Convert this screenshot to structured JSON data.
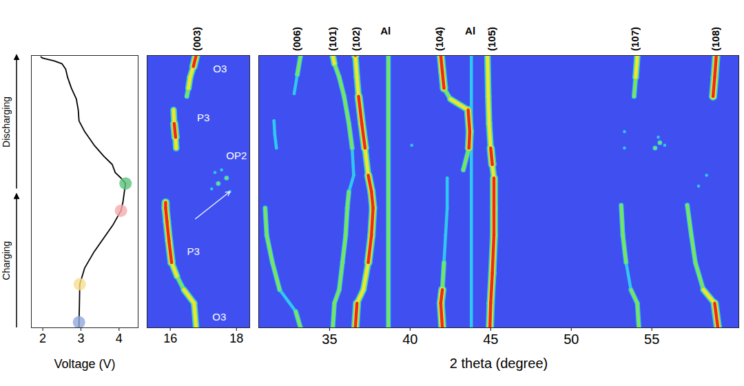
{
  "chart_data": [
    {
      "type": "line",
      "xlabel": "Voltage (V)",
      "xlim": [
        1.7,
        4.5
      ],
      "xticks": [
        2,
        3,
        4
      ],
      "ylim": [
        0,
        100
      ],
      "tick_labels": "x",
      "color": "#000000",
      "x": [
        2.95,
        2.95,
        2.96,
        2.97,
        3.1,
        3.35,
        3.6,
        3.85,
        4.05,
        4.1,
        4.13,
        4.17,
        4.05,
        3.9,
        3.82,
        3.6,
        3.35,
        3.1,
        2.95,
        2.93,
        2.88,
        2.75,
        2.65,
        2.6,
        2.5,
        2.3,
        2.0,
        1.95
      ],
      "y": [
        0,
        2,
        8,
        16,
        22,
        28,
        33,
        38,
        43,
        46,
        49,
        53,
        55,
        57,
        60,
        63,
        67,
        72,
        76,
        80,
        84,
        88,
        92,
        95,
        97,
        98,
        99,
        99.5
      ],
      "markers": {
        "x": [
          2.95,
          2.97,
          4.05,
          4.17
        ],
        "y": [
          2,
          16,
          43,
          53
        ],
        "colors": [
          "#8fa8dc",
          "#f7df8c",
          "#f6aaaa",
          "#5dc27c"
        ]
      },
      "phase_arrows": [
        {
          "text": "Charging",
          "y_start": 0,
          "y_end": 49
        },
        {
          "text": "Discharging",
          "y_start": 51,
          "y_end": 100
        }
      ]
    },
    {
      "type": "heatmap",
      "xlim": [
        15.3,
        18.4
      ],
      "xticks": [
        16,
        18
      ],
      "ylim": [
        0,
        100
      ],
      "tick_labels": "x",
      "color_scale": {
        "levels": [
          1,
          2,
          3,
          4
        ],
        "colors": [
          "#2fc8f0",
          "#7de35a",
          "#f0e532",
          "#ee2a1f"
        ]
      },
      "peak_labels": [
        {
          "text": "(003)",
          "x": 16.82
        }
      ],
      "annotations": [
        {
          "text": "O3",
          "x": 17.48,
          "y": 4
        },
        {
          "text": "P3",
          "x": 16.7,
          "y": 28
        },
        {
          "text": "OP2",
          "x": 18.0,
          "y": 63
        },
        {
          "text": "P3",
          "x": 17.0,
          "y": 77
        },
        {
          "text": "O3",
          "x": 17.5,
          "y": 95
        }
      ],
      "arrow": {
        "x1": 16.76,
        "y1": 40,
        "x2": 17.8,
        "y2": 50
      },
      "traces": [
        {
          "x": [
            16.78,
            16.72,
            16.41,
            16.2,
            16.04,
            15.96,
            15.9,
            15.86,
            15.86
          ],
          "y": [
            0,
            9,
            14,
            19,
            24,
            32,
            39,
            44,
            46
          ],
          "intensity": [
            3,
            3,
            2,
            3,
            4,
            4,
            4,
            4,
            3
          ]
        },
        {
          "type": "scatter",
          "x": [
            17.25,
            17.45,
            17.7,
            17.35,
            17.8,
            17.55
          ],
          "y": [
            51,
            53,
            55,
            57,
            50,
            58
          ],
          "intensity": [
            1,
            2,
            2,
            1,
            1,
            1
          ]
        },
        {
          "x": [
            16.18,
            16.16,
            16.12,
            16.1
          ],
          "y": [
            66,
            70,
            75,
            80
          ],
          "intensity": [
            3,
            4,
            3,
            2
          ]
        },
        {
          "x": [
            16.5,
            16.55,
            16.6,
            16.7,
            16.78
          ],
          "y": [
            85,
            88,
            92,
            96,
            100
          ],
          "intensity": [
            2,
            3,
            3,
            4,
            3
          ]
        }
      ]
    },
    {
      "type": "heatmap",
      "xlabel": "2 theta (degree)",
      "xlim": [
        30.6,
        60.4
      ],
      "xticks": [
        35,
        40,
        45,
        50,
        55
      ],
      "ylim": [
        0,
        100
      ],
      "tick_labels": "x",
      "color_scale": {
        "levels": [
          1,
          2,
          3,
          4
        ],
        "colors": [
          "#2fc8f0",
          "#7de35a",
          "#f0e532",
          "#ee2a1f"
        ]
      },
      "peak_labels": [
        {
          "text": "(006)",
          "x": 33.0
        },
        {
          "text": "(101)",
          "x": 35.2
        },
        {
          "text": "(102)",
          "x": 36.65
        },
        {
          "text": "Al",
          "x": 38.5
        },
        {
          "text": "(104)",
          "x": 41.85
        },
        {
          "text": "Al",
          "x": 43.75
        },
        {
          "text": "(105)",
          "x": 45.1
        },
        {
          "text": "(107)",
          "x": 54.0
        },
        {
          "text": "(108)",
          "x": 59.0
        }
      ],
      "traces": [
        {
          "x": [
            33.2,
            32.9,
            31.9,
            31.45,
            31.1,
            31.0
          ],
          "y": [
            0,
            6,
            14,
            24,
            34,
            44
          ],
          "intensity": [
            2,
            1,
            2,
            2,
            2,
            1
          ]
        },
        {
          "x": [
            31.7,
            31.6,
            31.55
          ],
          "y": [
            66,
            71,
            76
          ],
          "intensity": [
            1,
            1,
            1
          ]
        },
        {
          "x": [
            32.8,
            33.0,
            33.2
          ],
          "y": [
            86,
            93,
            100
          ],
          "intensity": [
            1,
            2,
            2
          ]
        },
        {
          "x": [
            35.2,
            35.3,
            35.6,
            35.8,
            36.0,
            36.1,
            36.2,
            36.5,
            36.4,
            36.2,
            35.9,
            35.6,
            35.3,
            35.2
          ],
          "y": [
            0,
            9,
            14,
            24,
            34,
            44,
            50,
            56,
            66,
            75,
            85,
            92,
            97,
            100
          ],
          "intensity": [
            2,
            2,
            2,
            2,
            2,
            2,
            1,
            1,
            2,
            2,
            2,
            2,
            3,
            3
          ]
        },
        {
          "x": [
            36.6,
            36.7,
            37.1,
            37.4,
            37.6,
            37.7,
            37.6,
            37.4,
            37.2,
            37.0,
            36.8,
            36.7,
            36.6
          ],
          "y": [
            0,
            9,
            14,
            24,
            34,
            44,
            50,
            56,
            66,
            75,
            85,
            92,
            100
          ],
          "intensity": [
            4,
            3,
            3,
            4,
            4,
            4,
            4,
            3,
            4,
            4,
            3,
            3,
            4
          ]
        },
        {
          "x": [
            38.65,
            38.65
          ],
          "y": [
            0,
            100
          ],
          "intensity": [
            2,
            2
          ]
        },
        {
          "x": [
            42.0,
            41.9,
            42.0,
            42.1,
            42.2,
            42.3,
            42.3
          ],
          "y": [
            0,
            9,
            14,
            24,
            34,
            44,
            55
          ],
          "intensity": [
            4,
            4,
            2,
            1,
            1,
            1,
            1
          ]
        },
        {
          "x": [
            43.3,
            43.65,
            43.7,
            43.6,
            42.5,
            42.1,
            42.0,
            41.9
          ],
          "y": [
            58,
            66,
            72,
            80,
            84,
            88,
            94,
            100
          ],
          "intensity": [
            2,
            4,
            4,
            3,
            2,
            4,
            4,
            4
          ]
        },
        {
          "x": [
            43.8,
            43.8
          ],
          "y": [
            0,
            100
          ],
          "intensity": [
            1,
            1
          ]
        },
        {
          "x": [
            44.95,
            45.0,
            45.1,
            45.2,
            45.2,
            45.2,
            45.1,
            45.0,
            44.9,
            44.85,
            44.8
          ],
          "y": [
            0,
            9,
            20,
            34,
            44,
            55,
            60,
            66,
            75,
            85,
            100
          ],
          "intensity": [
            4,
            4,
            4,
            4,
            4,
            3,
            4,
            3,
            3,
            3,
            3
          ]
        },
        {
          "x": [
            54.2,
            54.1,
            53.7,
            53.4,
            53.2,
            53.1
          ],
          "y": [
            0,
            9,
            14,
            24,
            34,
            45
          ],
          "intensity": [
            2,
            2,
            1,
            2,
            2,
            1
          ]
        },
        {
          "type": "scatter",
          "x": [
            53.3,
            53.3
          ],
          "y": [
            66,
            72
          ],
          "intensity": [
            1,
            1
          ]
        },
        {
          "x": [
            53.9,
            54.0,
            54.1
          ],
          "y": [
            85,
            92,
            100
          ],
          "intensity": [
            2,
            3,
            2
          ]
        },
        {
          "x": [
            59.1,
            58.9,
            58.2,
            57.7,
            57.45,
            57.2
          ],
          "y": [
            0,
            9,
            14,
            24,
            34,
            45
          ],
          "intensity": [
            4,
            3,
            2,
            2,
            2,
            2
          ]
        },
        {
          "x": [
            58.8,
            58.9,
            59.0
          ],
          "y": [
            85,
            92,
            100
          ],
          "intensity": [
            4,
            4,
            3
          ]
        },
        {
          "type": "scatter",
          "x": [
            55.2,
            55.5,
            55.8,
            55.4,
            57.9,
            58.4,
            40.1
          ],
          "y": [
            66,
            68,
            67,
            70,
            52,
            56,
            67
          ],
          "intensity": [
            2,
            2,
            1,
            1,
            1,
            1,
            1
          ]
        }
      ]
    }
  ]
}
